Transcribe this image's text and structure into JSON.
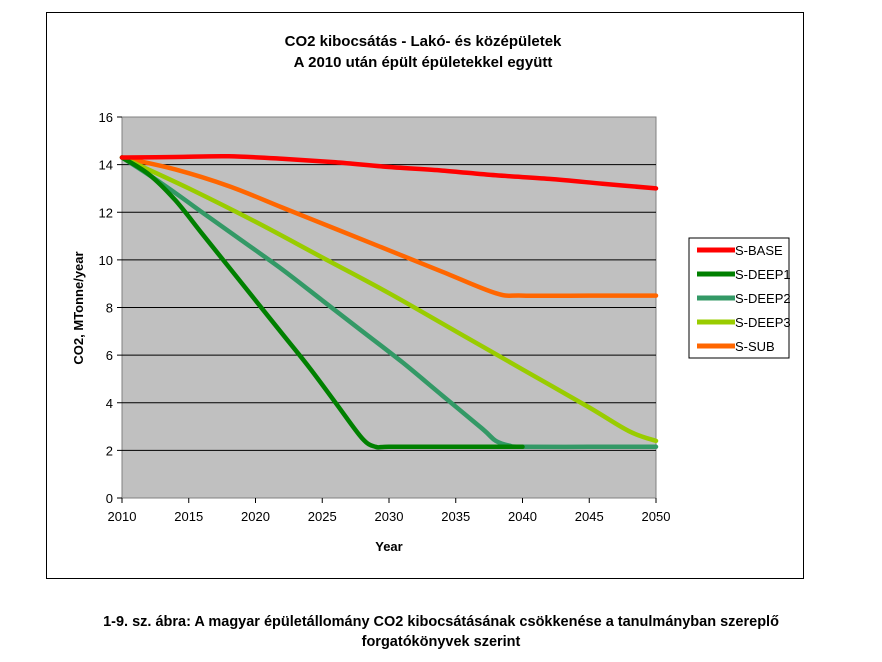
{
  "chart_data": {
    "type": "line",
    "title_lines": [
      "CO2 kibocsátás - Lakó- és középületek",
      "A 2010 után épült épületekkel együtt"
    ],
    "xlabel": "Year",
    "ylabel": "CO2, MTonne/year",
    "xlim": [
      2010,
      2050
    ],
    "ylim": [
      0,
      16
    ],
    "x_ticks": [
      2010,
      2015,
      2020,
      2025,
      2030,
      2035,
      2040,
      2045,
      2050
    ],
    "y_ticks": [
      0,
      2,
      4,
      6,
      8,
      10,
      12,
      14,
      16
    ],
    "grid": "horizontal",
    "plot_background": "#c0c0c0",
    "legend_position": "right",
    "series": [
      {
        "name": "S-BASE",
        "color": "#ff0000",
        "x": [
          2010,
          2014,
          2018,
          2022,
          2026,
          2030,
          2034,
          2038,
          2042,
          2046,
          2050
        ],
        "y": [
          14.3,
          14.32,
          14.35,
          14.25,
          14.1,
          13.9,
          13.75,
          13.55,
          13.4,
          13.2,
          13.0
        ]
      },
      {
        "name": "S-DEEP1",
        "color": "#008000",
        "x": [
          2010,
          2012,
          2014,
          2016,
          2018,
          2020,
          2022,
          2024,
          2026,
          2028,
          2029,
          2030,
          2035,
          2040
        ],
        "y": [
          14.3,
          13.6,
          12.5,
          11.1,
          9.7,
          8.3,
          6.9,
          5.5,
          4.0,
          2.5,
          2.15,
          2.15,
          2.15,
          2.15
        ]
      },
      {
        "name": "S-DEEP2",
        "color": "#339966",
        "x": [
          2010,
          2013,
          2016,
          2019,
          2022,
          2025,
          2028,
          2031,
          2034,
          2037,
          2038,
          2039,
          2040,
          2045,
          2050
        ],
        "y": [
          14.3,
          13.2,
          12.0,
          10.8,
          9.6,
          8.3,
          7.0,
          5.7,
          4.3,
          2.9,
          2.4,
          2.2,
          2.15,
          2.15,
          2.15
        ]
      },
      {
        "name": "S-DEEP3",
        "color": "#99cc00",
        "x": [
          2010,
          2015,
          2020,
          2025,
          2030,
          2035,
          2040,
          2045,
          2048,
          2050
        ],
        "y": [
          14.3,
          13.0,
          11.6,
          10.1,
          8.6,
          7.0,
          5.4,
          3.8,
          2.8,
          2.4
        ]
      },
      {
        "name": "S-SUB",
        "color": "#ff6600",
        "x": [
          2010,
          2014,
          2018,
          2022,
          2026,
          2030,
          2034,
          2038,
          2040,
          2045,
          2050
        ],
        "y": [
          14.3,
          13.8,
          13.1,
          12.2,
          11.3,
          10.4,
          9.5,
          8.6,
          8.5,
          8.5,
          8.5
        ]
      }
    ]
  },
  "caption": {
    "line1": "1-9. sz. ábra: A magyar épületállomány CO2 kibocsátásának csökkenése a tanulmányban szereplő",
    "line2": "forgatókönyvek szerint"
  }
}
